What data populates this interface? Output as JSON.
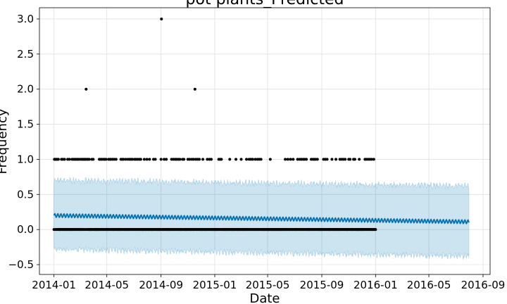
{
  "chart_data": {
    "type": "line",
    "title": "pot plants_Predicted",
    "xlabel": "Date",
    "ylabel": "Frequency",
    "x_ticks": [
      "2014-01",
      "2014-05",
      "2014-09",
      "2015-01",
      "2015-05",
      "2015-09",
      "2016-01",
      "2016-05",
      "2016-09"
    ],
    "y_ticks": [
      "−0.5",
      "0.0",
      "0.5",
      "1.0",
      "1.5",
      "2.0",
      "2.5",
      "3.0"
    ],
    "xlim": [
      "2013-11-29",
      "2016-09-17"
    ],
    "ylim": [
      -0.64,
      3.16
    ],
    "grid": true,
    "forecast": {
      "start": "2014-01-01",
      "end": "2016-07-31",
      "yhat_start": 0.2,
      "yhat_end": 0.11,
      "weekly_amplitude": 0.025,
      "interval_upper_start": 0.7,
      "interval_upper_end": 0.62,
      "interval_lower_start": -0.28,
      "interval_lower_end": -0.38,
      "interval_noise": 0.03
    },
    "observed": {
      "start": "2014-01-01",
      "end": "2016-01-01",
      "baseline_value": 0,
      "ones_dates": [
        "2014-01-02",
        "2014-01-03",
        "2014-01-05",
        "2014-01-07",
        "2014-01-09",
        "2014-01-11",
        "2014-01-18",
        "2014-01-21",
        "2014-01-25",
        "2014-02-01",
        "2014-02-05",
        "2014-02-11",
        "2014-02-14",
        "2014-02-17",
        "2014-02-19",
        "2014-02-22",
        "2014-02-24",
        "2014-02-27",
        "2014-03-03",
        "2014-03-06",
        "2014-03-08",
        "2014-03-10",
        "2014-03-12",
        "2014-03-14",
        "2014-03-17",
        "2014-03-19",
        "2014-03-22",
        "2014-03-28",
        "2014-03-31",
        "2014-04-14",
        "2014-04-17",
        "2014-04-20",
        "2014-04-24",
        "2014-04-26",
        "2014-04-29",
        "2014-05-05",
        "2014-05-08",
        "2014-05-10",
        "2014-05-14",
        "2014-05-18",
        "2014-05-22",
        "2014-06-02",
        "2014-06-05",
        "2014-06-08",
        "2014-06-13",
        "2014-06-18",
        "2014-06-22",
        "2014-06-25",
        "2014-06-28",
        "2014-07-03",
        "2014-07-06",
        "2014-07-10",
        "2014-07-14",
        "2014-07-17",
        "2014-07-25",
        "2014-07-31",
        "2014-08-06",
        "2014-08-15",
        "2014-08-19",
        "2014-09-01",
        "2014-09-08",
        "2014-09-13",
        "2014-09-25",
        "2014-09-29",
        "2014-10-03",
        "2014-10-06",
        "2014-10-10",
        "2014-10-14",
        "2014-10-20",
        "2014-10-23",
        "2014-11-01",
        "2014-11-05",
        "2014-11-10",
        "2014-11-14",
        "2014-11-19",
        "2014-11-23",
        "2014-11-27",
        "2014-12-05",
        "2014-12-15",
        "2014-12-20",
        "2014-12-24",
        "2015-01-10",
        "2015-01-13",
        "2015-01-16",
        "2015-02-04",
        "2015-02-18",
        "2015-03-02",
        "2015-03-14",
        "2015-03-20",
        "2015-03-24",
        "2015-03-28",
        "2015-04-03",
        "2015-04-08",
        "2015-04-12",
        "2015-04-16",
        "2015-05-07",
        "2015-06-10",
        "2015-06-16",
        "2015-06-22",
        "2015-06-28",
        "2015-07-08",
        "2015-07-13",
        "2015-07-17",
        "2015-07-21",
        "2015-07-24",
        "2015-07-28",
        "2015-08-08",
        "2015-08-12",
        "2015-08-15",
        "2015-08-18",
        "2015-08-22",
        "2015-09-05",
        "2015-09-09",
        "2015-09-13",
        "2015-09-24",
        "2015-10-03",
        "2015-10-12",
        "2015-10-16",
        "2015-10-20",
        "2015-10-24",
        "2015-11-01",
        "2015-11-04",
        "2015-11-12",
        "2015-11-15",
        "2015-11-25",
        "2015-12-08",
        "2015-12-11",
        "2015-12-15",
        "2015-12-19",
        "2015-12-23",
        "2015-12-28"
      ],
      "outliers": [
        {
          "date": "2014-03-15",
          "value": 2
        },
        {
          "date": "2014-09-02",
          "value": 3
        },
        {
          "date": "2014-11-17",
          "value": 2
        }
      ]
    }
  }
}
